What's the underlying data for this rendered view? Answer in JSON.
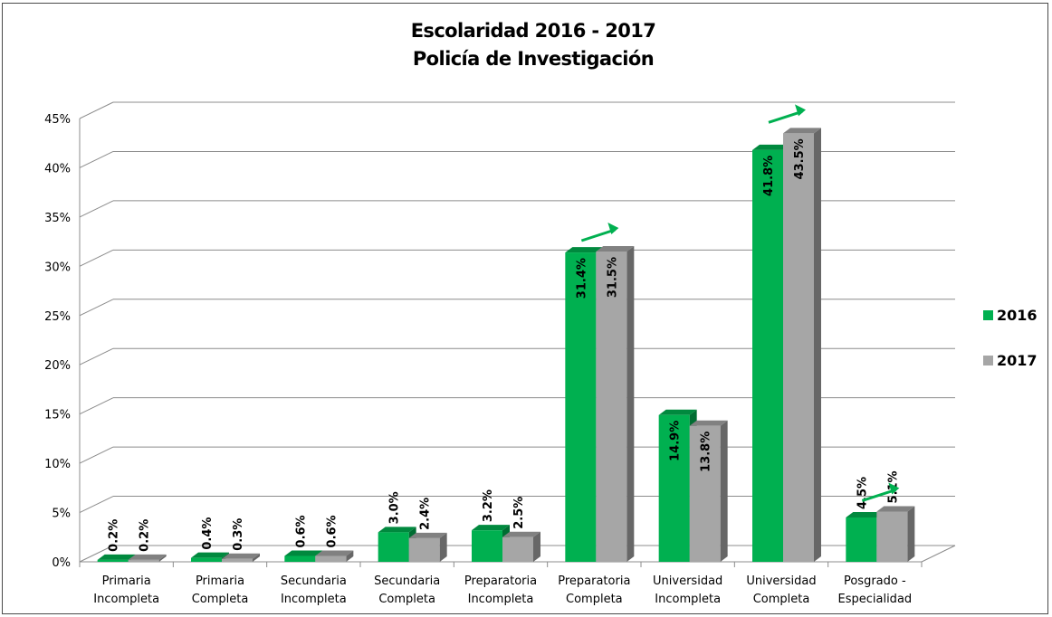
{
  "chart_data": {
    "type": "bar",
    "title": "Escolaridad 2016 - 2017",
    "subtitle": "Policía de Investigación",
    "categories": [
      [
        "Primaria",
        "Incompleta"
      ],
      [
        "Primaria",
        "Completa"
      ],
      [
        "Secundaria",
        "Incompleta"
      ],
      [
        "Secundaria",
        "Completa"
      ],
      [
        "Preparatoria",
        "Incompleta"
      ],
      [
        "Preparatoria",
        "Completa"
      ],
      [
        "Universidad",
        "Incompleta"
      ],
      [
        "Universidad",
        "Completa"
      ],
      [
        "Posgrado -",
        "Especialidad"
      ]
    ],
    "series": [
      {
        "name": "2016",
        "values": [
          0.2,
          0.4,
          0.6,
          3.0,
          3.2,
          31.4,
          14.9,
          41.8,
          4.5
        ],
        "labels": [
          "0.2%",
          "0.4%",
          "0.6%",
          "3.0%",
          "3.2%",
          "31.4%",
          "14.9%",
          "41.8%",
          "4.5%"
        ],
        "color": "#00b050"
      },
      {
        "name": "2017",
        "values": [
          0.2,
          0.3,
          0.6,
          2.4,
          2.5,
          31.5,
          13.8,
          43.5,
          5.1
        ],
        "labels": [
          "0.2%",
          "0.3%",
          "0.6%",
          "2.4%",
          "2.5%",
          "31.5%",
          "13.8%",
          "43.5%",
          "5.1%"
        ],
        "color": "#a6a6a6"
      }
    ],
    "ylim": [
      0,
      45
    ],
    "yticks": [
      "0%",
      "5%",
      "10%",
      "15%",
      "20%",
      "25%",
      "30%",
      "35%",
      "40%",
      "45%"
    ],
    "grid": true,
    "legend_position": "right",
    "increase_arrows_on": [
      "Preparatoria Completa",
      "Universidad Completa",
      "Posgrado - Especialidad"
    ],
    "arrow_color": "#00b050"
  }
}
